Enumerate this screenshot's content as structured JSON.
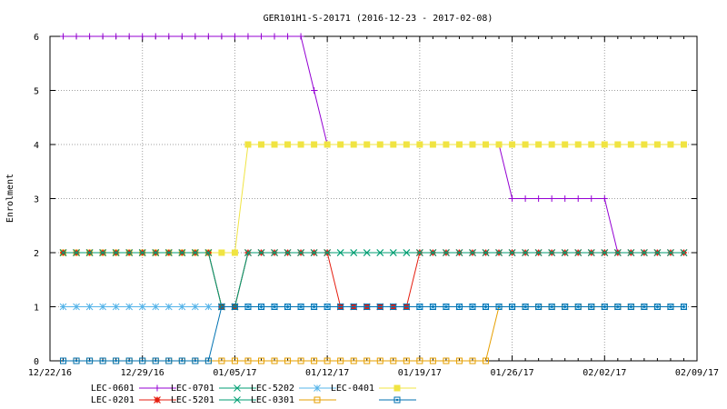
{
  "chart_data": {
    "type": "line",
    "title": "GER101H1-S-20171 (2016-12-23 - 2017-02-08)",
    "xlabel": "",
    "ylabel": "Enrolment",
    "x_ticks": [
      "12/22/16",
      "12/29/16",
      "01/05/17",
      "01/12/17",
      "01/19/17",
      "01/26/17",
      "02/02/17",
      "02/09/17"
    ],
    "x_range": [
      "2016-12-22",
      "2017-02-09"
    ],
    "y_ticks": [
      0,
      1,
      2,
      3,
      4,
      5,
      6
    ],
    "ylim": [
      0,
      6
    ],
    "grid": true,
    "legend_position": "bottom",
    "dates": [
      "2016-12-23",
      "2016-12-24",
      "2016-12-25",
      "2016-12-26",
      "2016-12-27",
      "2016-12-28",
      "2016-12-29",
      "2016-12-30",
      "2016-12-31",
      "2017-01-01",
      "2017-01-02",
      "2017-01-03",
      "2017-01-04",
      "2017-01-05",
      "2017-01-06",
      "2017-01-07",
      "2017-01-08",
      "2017-01-09",
      "2017-01-10",
      "2017-01-11",
      "2017-01-12",
      "2017-01-13",
      "2017-01-14",
      "2017-01-15",
      "2017-01-16",
      "2017-01-17",
      "2017-01-18",
      "2017-01-19",
      "2017-01-20",
      "2017-01-21",
      "2017-01-22",
      "2017-01-23",
      "2017-01-24",
      "2017-01-25",
      "2017-01-26",
      "2017-01-27",
      "2017-01-28",
      "2017-01-29",
      "2017-01-30",
      "2017-01-31",
      "2017-02-01",
      "2017-02-02",
      "2017-02-03",
      "2017-02-04",
      "2017-02-05",
      "2017-02-06",
      "2017-02-07",
      "2017-02-08"
    ],
    "series": [
      {
        "name": "LEC-0601",
        "color": "#9400d3",
        "marker": "plus",
        "values": [
          6,
          6,
          6,
          6,
          6,
          6,
          6,
          6,
          6,
          6,
          6,
          6,
          6,
          6,
          6,
          6,
          6,
          6,
          6,
          5,
          4,
          4,
          4,
          4,
          4,
          4,
          4,
          4,
          4,
          4,
          4,
          4,
          4,
          4,
          3,
          3,
          3,
          3,
          3,
          3,
          3,
          3,
          2,
          2,
          2,
          2,
          2,
          2
        ]
      },
      {
        "name": "LEC-0701",
        "color": "#009e73",
        "marker": "cross",
        "values": [
          2,
          2,
          2,
          2,
          2,
          2,
          2,
          2,
          2,
          2,
          2,
          2,
          1,
          1,
          2,
          2,
          2,
          2,
          2,
          2,
          2,
          2,
          2,
          2,
          2,
          2,
          2,
          2,
          2,
          2,
          2,
          2,
          2,
          2,
          2,
          2,
          2,
          2,
          2,
          2,
          2,
          2,
          2,
          2,
          2,
          2,
          2,
          2
        ]
      },
      {
        "name": "LEC-5202",
        "color": "#56b4e9",
        "marker": "star",
        "values": [
          1,
          1,
          1,
          1,
          1,
          1,
          1,
          1,
          1,
          1,
          1,
          1,
          1,
          1,
          1,
          1,
          1,
          1,
          1,
          1,
          1,
          1,
          1,
          1,
          1,
          1,
          1,
          1,
          1,
          1,
          1,
          1,
          1,
          1,
          1,
          1,
          1,
          1,
          1,
          1,
          1,
          1,
          1,
          1,
          1,
          1,
          1,
          1
        ]
      },
      {
        "name": "LEC-0401",
        "color": "#f0e442",
        "marker": "filled-square",
        "values": [
          2,
          2,
          2,
          2,
          2,
          2,
          2,
          2,
          2,
          2,
          2,
          2,
          2,
          2,
          4,
          4,
          4,
          4,
          4,
          4,
          4,
          4,
          4,
          4,
          4,
          4,
          4,
          4,
          4,
          4,
          4,
          4,
          4,
          4,
          4,
          4,
          4,
          4,
          4,
          4,
          4,
          4,
          4,
          4,
          4,
          4,
          4,
          4
        ]
      },
      {
        "name": "LEC-0201",
        "color": "#e51e10",
        "marker": "filled-star",
        "values": [
          2,
          2,
          2,
          2,
          2,
          2,
          2,
          2,
          2,
          2,
          2,
          2,
          1,
          1,
          2,
          2,
          2,
          2,
          2,
          2,
          2,
          1,
          1,
          1,
          1,
          1,
          1,
          2,
          2,
          2,
          2,
          2,
          2,
          2,
          2,
          2,
          2,
          2,
          2,
          2,
          2,
          2,
          2,
          2,
          2,
          2,
          2,
          2
        ]
      },
      {
        "name": "LEC-5201",
        "color": "#009e73",
        "marker": "cross",
        "values": [
          2,
          2,
          2,
          2,
          2,
          2,
          2,
          2,
          2,
          2,
          2,
          2,
          1,
          1,
          2,
          2,
          2,
          2,
          2,
          2,
          2,
          2,
          2,
          2,
          2,
          2,
          2,
          2,
          2,
          2,
          2,
          2,
          2,
          2,
          2,
          2,
          2,
          2,
          2,
          2,
          2,
          2,
          2,
          2,
          2,
          2,
          2,
          2
        ]
      },
      {
        "name": "LEC-0301",
        "color": "#e69f00",
        "marker": "open-square",
        "values": [
          0,
          0,
          0,
          0,
          0,
          0,
          0,
          0,
          0,
          0,
          0,
          0,
          0,
          0,
          0,
          0,
          0,
          0,
          0,
          0,
          0,
          0,
          0,
          0,
          0,
          0,
          0,
          0,
          0,
          0,
          0,
          0,
          0,
          1,
          1,
          1,
          1,
          1,
          1,
          1,
          1,
          1,
          1,
          1,
          1,
          1,
          1,
          1
        ]
      },
      {
        "name": "",
        "color": "#0072b2",
        "marker": "open-circle-square",
        "values": [
          0,
          0,
          0,
          0,
          0,
          0,
          0,
          0,
          0,
          0,
          0,
          0,
          1,
          1,
          1,
          1,
          1,
          1,
          1,
          1,
          1,
          1,
          1,
          1,
          1,
          1,
          1,
          1,
          1,
          1,
          1,
          1,
          1,
          1,
          1,
          1,
          1,
          1,
          1,
          1,
          1,
          1,
          1,
          1,
          1,
          1,
          1,
          1
        ]
      }
    ]
  }
}
